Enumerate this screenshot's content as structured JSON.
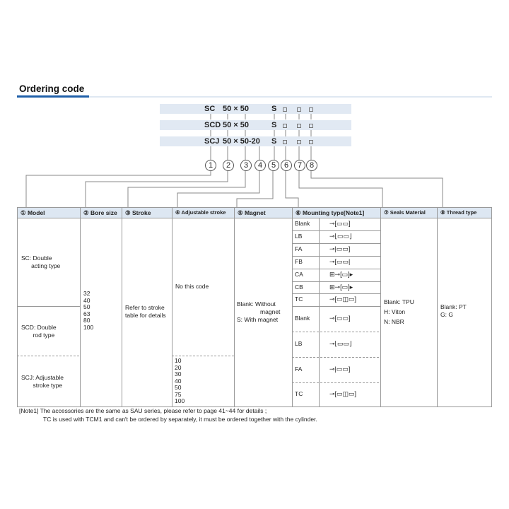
{
  "title": "Ordering code",
  "codes": [
    {
      "model": "SC",
      "size": "50 × 50",
      "magnet": "S"
    },
    {
      "model": "SCD",
      "size": "50 × 50",
      "magnet": "S"
    },
    {
      "model": "SCJ",
      "size": "50 × 50-20",
      "magnet": "S"
    }
  ],
  "numbers": [
    "1",
    "2",
    "3",
    "4",
    "5",
    "6",
    "7",
    "8"
  ],
  "headers": [
    "① Model",
    "② Bore size",
    "③ Stroke",
    "④ Adjustable stroke",
    "⑤ Magnet",
    "⑥ Mounting type[Note1]",
    "⑦ Seals Material",
    "⑧ Thread type"
  ],
  "models": [
    "SC: Double\n      acting type",
    "SCD: Double\n       rod type",
    "SCJ: Adjustable\n       stroke type"
  ],
  "bore_sizes": "32\n40\n50\n63\n80\n100",
  "stroke": "Refer to stroke\ntable for details",
  "adjustable": {
    "none": "No this code",
    "values": "10\n20\n30\n40\n50\n75\n100"
  },
  "magnet": "Blank: Without\n              magnet\nS: With magnet",
  "mounting": [
    {
      "code": "Blank",
      "icon": "basic-cylinder-icon"
    },
    {
      "code": "LB",
      "icon": "foot-mount-icon"
    },
    {
      "code": "FA",
      "icon": "front-flange-icon"
    },
    {
      "code": "FB",
      "icon": "rear-flange-icon"
    },
    {
      "code": "CA",
      "icon": "single-clevis-icon"
    },
    {
      "code": "CB",
      "icon": "double-clevis-icon"
    },
    {
      "code": "TC",
      "icon": "trunnion-icon"
    },
    {
      "code": "Blank",
      "icon": "basic-cylinder-icon"
    },
    {
      "code": "LB",
      "icon": "foot-mount-icon"
    },
    {
      "code": "FA",
      "icon": "front-flange-icon"
    },
    {
      "code": "TC",
      "icon": "trunnion-icon"
    }
  ],
  "seals": "Blank: TPU\nH: Viton\nN: NBR",
  "thread": "Blank: PT\nG: G",
  "notes": [
    "[Note1] The accessories are the same as SAU series, please refer to page 41~44 for details ;",
    "TC is used with TCM1 and can't be ordered by separately, it must be ordered together with the cylinder."
  ],
  "colors": {
    "accent": "#1f5fa8",
    "header_bg": "#dde7f2",
    "code_bg": "#e1e9f3"
  }
}
